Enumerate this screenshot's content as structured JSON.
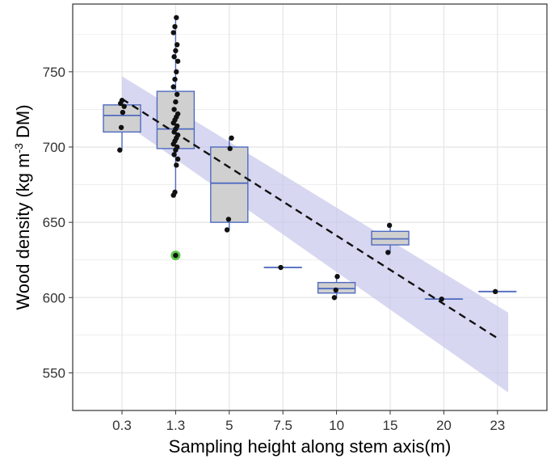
{
  "chart_data": {
    "type": "box",
    "xlabel": "Sampling height along stem axis(m)",
    "ylabel": {
      "before": "Wood density (kg m",
      "sup": "-3",
      "after": " DM)"
    },
    "categories": [
      "0.3",
      "1.3",
      "5",
      "7.5",
      "10",
      "15",
      "20",
      "23"
    ],
    "ylim": [
      525,
      795
    ],
    "yticks": [
      550,
      600,
      650,
      700,
      750
    ],
    "grid": true,
    "boxes": [
      {
        "category": "0.3",
        "q1": 710,
        "median": 721,
        "q3": 728,
        "whisker_low": 698,
        "whisker_high": 731
      },
      {
        "category": "1.3",
        "q1": 699,
        "median": 712,
        "q3": 737,
        "whisker_low": 668,
        "whisker_high": 786
      },
      {
        "category": "5",
        "q1": 650,
        "median": 676,
        "q3": 700,
        "whisker_low": 645,
        "whisker_high": 706
      },
      {
        "category": "7.5",
        "q1": 620,
        "median": 620,
        "q3": 620,
        "whisker_low": 620,
        "whisker_high": 620
      },
      {
        "category": "10",
        "q1": 603,
        "median": 606,
        "q3": 610,
        "whisker_low": 600,
        "whisker_high": 614
      },
      {
        "category": "15",
        "q1": 635,
        "median": 639,
        "q3": 644,
        "whisker_low": 630,
        "whisker_high": 648
      },
      {
        "category": "20",
        "q1": 599,
        "median": 599,
        "q3": 599,
        "whisker_low": 599,
        "whisker_high": 599
      },
      {
        "category": "23",
        "q1": 604,
        "median": 604,
        "q3": 604,
        "whisker_low": 604,
        "whisker_high": 604
      }
    ],
    "points": [
      {
        "category": "0.3",
        "values": [
          698,
          713,
          723,
          727,
          729,
          731
        ]
      },
      {
        "category": "1.3",
        "values": [
          668,
          670,
          688,
          692,
          695,
          698,
          700,
          702,
          704,
          706,
          708,
          710,
          712,
          714,
          716,
          718,
          720,
          722,
          725,
          730,
          735,
          740,
          745,
          750,
          757,
          760,
          764,
          768,
          776,
          780,
          786
        ]
      },
      {
        "category": "5",
        "values": [
          645,
          652,
          699,
          706
        ]
      },
      {
        "category": "7.5",
        "values": [
          620
        ]
      },
      {
        "category": "10",
        "values": [
          600,
          605,
          614
        ]
      },
      {
        "category": "15",
        "values": [
          630,
          648
        ]
      },
      {
        "category": "20",
        "values": [
          599
        ]
      },
      {
        "category": "23",
        "values": [
          604
        ]
      }
    ],
    "outlier": {
      "category": "1.3",
      "value": 628,
      "color": "#5cc94a"
    },
    "trend": {
      "x_from": "0.3",
      "x_to": "23",
      "y_from": 732,
      "y_to": 573
    },
    "confidence_band": {
      "upper": [
        [
          0,
          747
        ],
        [
          7.2,
          590
        ]
      ],
      "lower": [
        [
          0,
          717
        ],
        [
          7.2,
          537
        ]
      ]
    },
    "colors": {
      "box_fill": "#d0d0d0",
      "box_stroke": "#4f6bbf",
      "point": "#111111",
      "band": "#c9c9ec",
      "trend": "#111111",
      "grid": "#e4e4e4",
      "panel_border": "#333333"
    }
  }
}
